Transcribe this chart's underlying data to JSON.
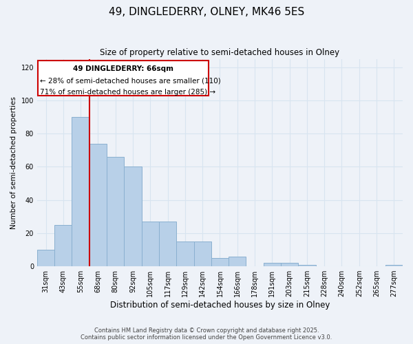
{
  "title": "49, DINGLEDERRY, OLNEY, MK46 5ES",
  "subtitle": "Size of property relative to semi-detached houses in Olney",
  "xlabel": "Distribution of semi-detached houses by size in Olney",
  "ylabel": "Number of semi-detached properties",
  "categories": [
    "31sqm",
    "43sqm",
    "55sqm",
    "68sqm",
    "80sqm",
    "92sqm",
    "105sqm",
    "117sqm",
    "129sqm",
    "142sqm",
    "154sqm",
    "166sqm",
    "178sqm",
    "191sqm",
    "203sqm",
    "215sqm",
    "228sqm",
    "240sqm",
    "252sqm",
    "265sqm",
    "277sqm"
  ],
  "values": [
    10,
    25,
    90,
    74,
    66,
    60,
    27,
    27,
    15,
    15,
    5,
    6,
    0,
    2,
    2,
    1,
    0,
    0,
    0,
    0,
    1
  ],
  "bar_color": "#b8d0e8",
  "bar_edge_color": "#8ab0d0",
  "background_color": "#eef2f8",
  "grid_color": "#d8e4f0",
  "annotation_text_line1": "49 DINGLEDERRY: 66sqm",
  "annotation_text_line2": "← 28% of semi-detached houses are smaller (110)",
  "annotation_text_line3": "71% of semi-detached houses are larger (285) →",
  "annotation_box_facecolor": "#ffffff",
  "annotation_box_edge": "#cc0000",
  "vline_color": "#cc0000",
  "vline_x": 2.5,
  "ylim": [
    0,
    125
  ],
  "yticks": [
    0,
    20,
    40,
    60,
    80,
    100,
    120
  ],
  "footer_line1": "Contains HM Land Registry data © Crown copyright and database right 2025.",
  "footer_line2": "Contains public sector information licensed under the Open Government Licence v3.0."
}
